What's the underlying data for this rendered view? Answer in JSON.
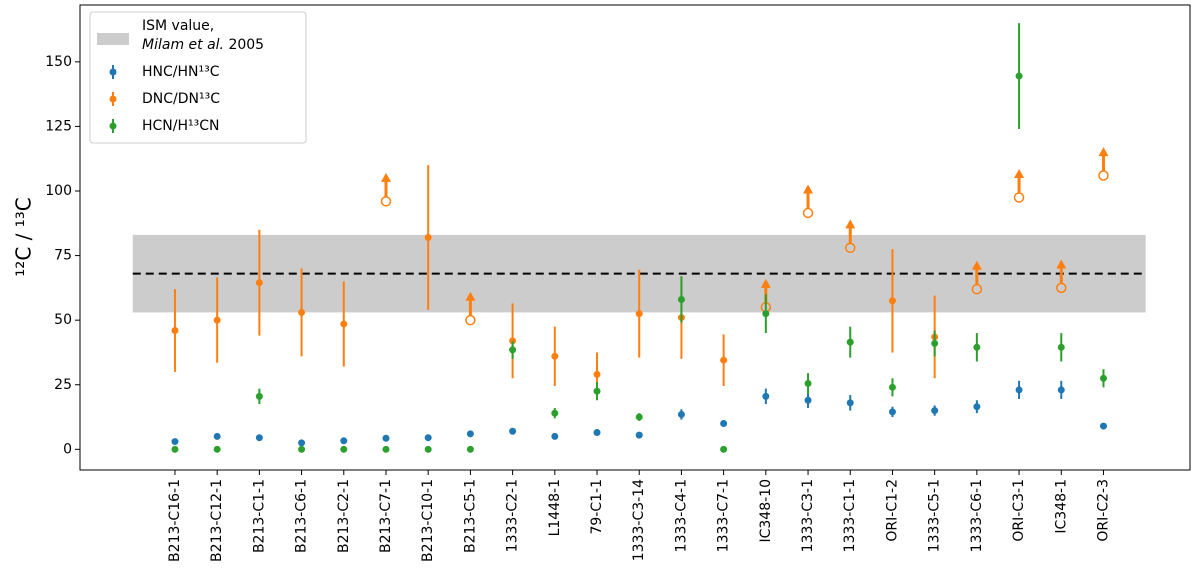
{
  "chart_data": {
    "type": "scatter",
    "ylabel": "¹²C / ¹³C",
    "categories": [
      "B213-C16-1",
      "B213-C12-1",
      "B213-C1-1",
      "B213-C6-1",
      "B213-C2-1",
      "B213-C7-1",
      "B213-C10-1",
      "B213-C5-1",
      "1333-C2-1",
      "L1448-1",
      "79-C1-1",
      "1333-C3-14",
      "1333-C4-1",
      "1333-C7-1",
      "IC348-10",
      "1333-C3-1",
      "1333-C1-1",
      "ORI-C1-2",
      "1333-C5-1",
      "1333-C6-1",
      "ORI-C3-1",
      "IC348-1",
      "ORI-C2-3"
    ],
    "series": [
      {
        "name": "HNC/HN¹³C",
        "color": "#1f77b4",
        "values": [
          3,
          5,
          4.5,
          2.5,
          3.3,
          4.3,
          4.5,
          6,
          7,
          5,
          6.5,
          5.5,
          13.5,
          10,
          20.5,
          19,
          18,
          14.5,
          15,
          16.5,
          23,
          23,
          9
        ],
        "errors": [
          1,
          1,
          1,
          1,
          1,
          1,
          1,
          1,
          1,
          1,
          1,
          1,
          2,
          1,
          3,
          3,
          3,
          2,
          2,
          2.5,
          3.5,
          3.5,
          1
        ]
      },
      {
        "name": "DNC/DN¹³C",
        "color": "#ff7f0e",
        "values": [
          46,
          50,
          64.5,
          53,
          48.5,
          96,
          82,
          50,
          42,
          36,
          29,
          52.5,
          51,
          34.5,
          55,
          91.5,
          78,
          57.5,
          43.5,
          62,
          97.5,
          62.5,
          106
        ],
        "errors": [
          16,
          16.5,
          20.5,
          17,
          16.5,
          null,
          28,
          null,
          14.5,
          11.5,
          8.5,
          17,
          16,
          10,
          null,
          null,
          null,
          20,
          16,
          null,
          null,
          null,
          null
        ],
        "lower_limits": [
          false,
          false,
          false,
          false,
          false,
          true,
          false,
          true,
          false,
          false,
          false,
          false,
          false,
          false,
          true,
          true,
          true,
          false,
          false,
          true,
          true,
          true,
          true
        ]
      },
      {
        "name": "HCN/H¹³CN",
        "color": "#2ca02c",
        "values": [
          0,
          0,
          20.5,
          0,
          0,
          0,
          0,
          0,
          38.5,
          14,
          22.5,
          12.5,
          58,
          0,
          52.5,
          25.5,
          41.5,
          24,
          41,
          39.5,
          144.5,
          39.5,
          27.5
        ],
        "errors": [
          0,
          0,
          3,
          0,
          0,
          0,
          0,
          0,
          3.5,
          2,
          3.5,
          1.5,
          9,
          0,
          7.5,
          4,
          6,
          3.5,
          5,
          5.5,
          20.5,
          5.5,
          3.5
        ]
      }
    ],
    "ism": {
      "label": [
        "ISM value,",
        "Milam et al.",
        "2005"
      ],
      "value": 68,
      "range": [
        53,
        83
      ],
      "color": "#cccccc"
    },
    "ylim": [
      -8,
      172
    ],
    "yticks": [
      0,
      25,
      50,
      75,
      100,
      125,
      150
    ],
    "legend": "upper left"
  }
}
